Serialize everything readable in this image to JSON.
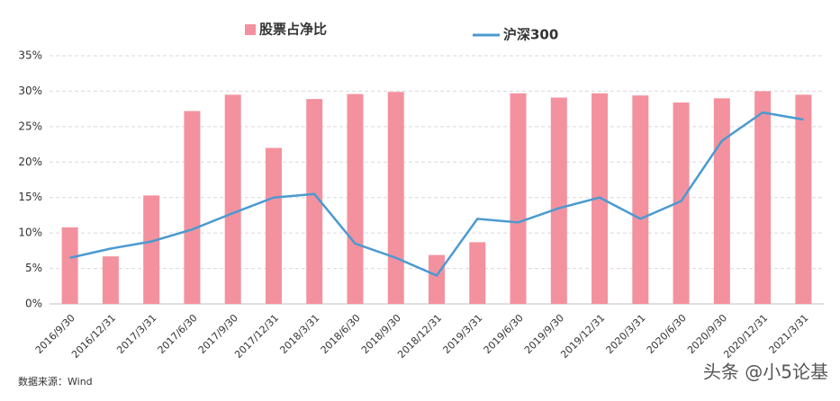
{
  "chart_data": {
    "type": "bar_line",
    "categories": [
      "2016/9/30",
      "2016/12/31",
      "2017/3/31",
      "2017/6/30",
      "2017/9/30",
      "2017/12/31",
      "2018/3/31",
      "2018/6/30",
      "2018/9/30",
      "2018/12/31",
      "2019/3/31",
      "2019/6/30",
      "2019/9/30",
      "2019/12/31",
      "2020/3/31",
      "2020/6/30",
      "2020/9/30",
      "2020/12/31",
      "2021/3/31"
    ],
    "series": [
      {
        "name": "股票占净比",
        "type": "bar",
        "color": "#f4919e",
        "values": [
          10.8,
          6.7,
          15.3,
          27.2,
          29.5,
          22.0,
          28.9,
          29.6,
          29.9,
          6.9,
          8.7,
          29.7,
          29.1,
          29.7,
          29.4,
          28.4,
          29.0,
          30.0,
          29.5
        ]
      },
      {
        "name": "沪深300",
        "type": "line",
        "color": "#4a9ad0",
        "values": [
          6.5,
          7.8,
          8.8,
          10.5,
          12.8,
          15.0,
          15.5,
          8.5,
          6.5,
          4.0,
          12.0,
          11.5,
          13.5,
          15.0,
          12.0,
          14.5,
          23.0,
          27.0,
          26.0
        ]
      }
    ],
    "ylim": [
      0,
      35
    ],
    "yticks": [
      {
        "value": 0,
        "label": "0%"
      },
      {
        "value": 5,
        "label": "5%"
      },
      {
        "value": 10,
        "label": "10%"
      },
      {
        "value": 15,
        "label": "15%"
      },
      {
        "value": 20,
        "label": "20%"
      },
      {
        "value": 25,
        "label": "25%"
      },
      {
        "value": 30,
        "label": "30%"
      },
      {
        "value": 35,
        "label": "35%"
      }
    ],
    "grid": true,
    "source": "数据来源：Wind",
    "watermark": "头条 @小5论基"
  }
}
